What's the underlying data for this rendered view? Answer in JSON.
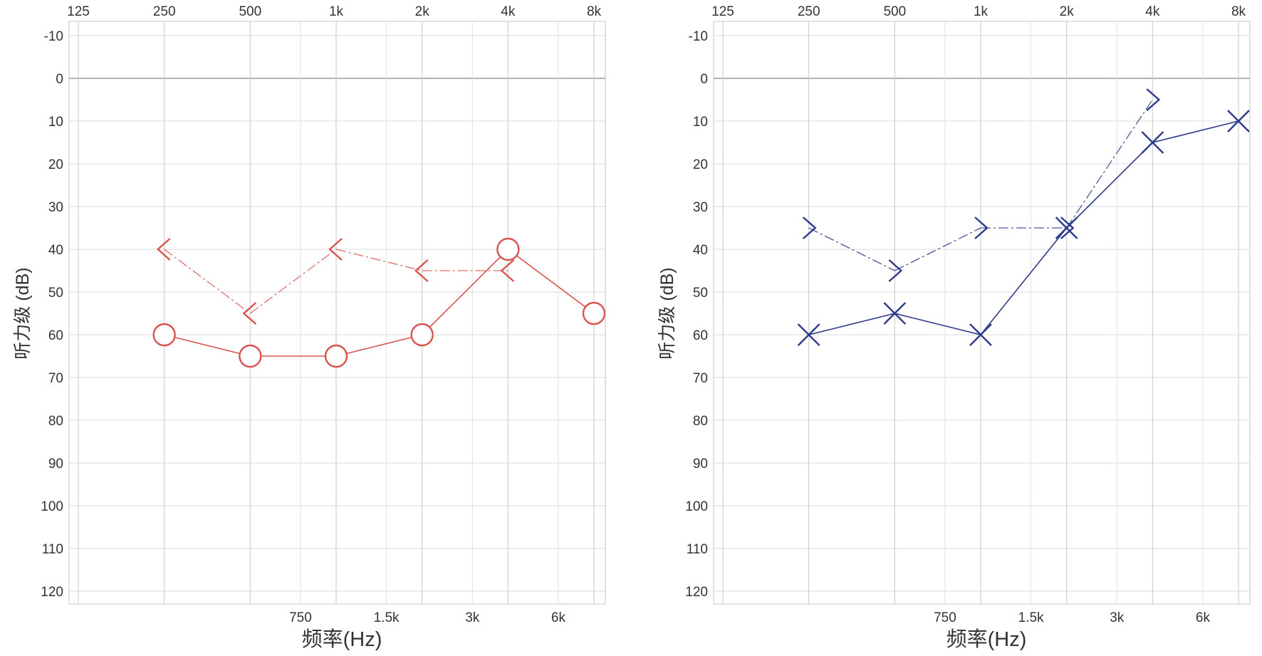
{
  "page": {
    "background": "#ffffff"
  },
  "chart_data": [
    {
      "type": "line",
      "title": "",
      "xlabel": "频率(Hz)",
      "ylabel": "听力级 (dB)",
      "x_scale": "log2",
      "y_inverted": true,
      "ylim": [
        -10,
        120
      ],
      "y_ticks": [
        -10,
        0,
        10,
        20,
        30,
        40,
        50,
        60,
        70,
        80,
        90,
        100,
        110,
        120
      ],
      "x_top_ticks": [
        {
          "label": "125",
          "hz": 125
        },
        {
          "label": "250",
          "hz": 250
        },
        {
          "label": "500",
          "hz": 500
        },
        {
          "label": "1k",
          "hz": 1000
        },
        {
          "label": "2k",
          "hz": 2000
        },
        {
          "label": "4k",
          "hz": 4000
        },
        {
          "label": "8k",
          "hz": 8000
        }
      ],
      "x_bottom_ticks": [
        {
          "label": "750",
          "hz": 750
        },
        {
          "label": "1.5k",
          "hz": 1500
        },
        {
          "label": "3k",
          "hz": 3000
        },
        {
          "label": "6k",
          "hz": 6000
        }
      ],
      "grid": true,
      "color": "#d9534f",
      "series": [
        {
          "marker": "circle",
          "line_style": "solid",
          "x": [
            250,
            500,
            1000,
            2000,
            4000,
            8000
          ],
          "y": [
            60,
            65,
            65,
            60,
            40,
            55
          ]
        },
        {
          "marker": "bracket-left",
          "line_style": "dashed",
          "x": [
            250,
            500,
            1000,
            2000,
            4000
          ],
          "y": [
            40,
            55,
            40,
            45,
            45
          ]
        }
      ]
    },
    {
      "type": "line",
      "title": "",
      "xlabel": "频率(Hz)",
      "ylabel": "听力级 (dB)",
      "x_scale": "log2",
      "y_inverted": true,
      "ylim": [
        -10,
        120
      ],
      "y_ticks": [
        -10,
        0,
        10,
        20,
        30,
        40,
        50,
        60,
        70,
        80,
        90,
        100,
        110,
        120
      ],
      "x_top_ticks": [
        {
          "label": "125",
          "hz": 125
        },
        {
          "label": "250",
          "hz": 250
        },
        {
          "label": "500",
          "hz": 500
        },
        {
          "label": "1k",
          "hz": 1000
        },
        {
          "label": "2k",
          "hz": 2000
        },
        {
          "label": "4k",
          "hz": 4000
        },
        {
          "label": "8k",
          "hz": 8000
        }
      ],
      "x_bottom_ticks": [
        {
          "label": "750",
          "hz": 750
        },
        {
          "label": "1.5k",
          "hz": 1500
        },
        {
          "label": "3k",
          "hz": 3000
        },
        {
          "label": "6k",
          "hz": 6000
        }
      ],
      "grid": true,
      "color": "#2e3a8c",
      "series": [
        {
          "marker": "cross",
          "line_style": "solid",
          "x": [
            250,
            500,
            1000,
            2000,
            4000,
            8000
          ],
          "y": [
            60,
            55,
            60,
            35,
            15,
            10
          ]
        },
        {
          "marker": "bracket-right",
          "line_style": "dashed",
          "x": [
            250,
            500,
            1000,
            2000,
            4000
          ],
          "y": [
            35,
            45,
            35,
            35,
            5
          ]
        }
      ]
    }
  ]
}
